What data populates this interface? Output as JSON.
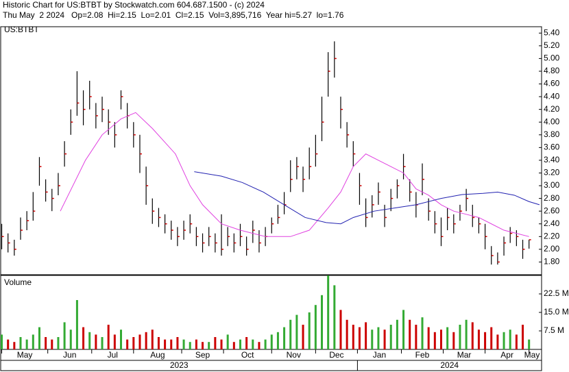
{
  "header": {
    "line1": "Historic Chart for US:BTBT by Stockwatch.com 604.687.1500 - (c) 2024",
    "line2": "Thu May  2 2024   Op=2.08  Hi=2.15  Lo=2.01  Cl=2.15  Vol=3,895,716  Year hi=5.27  lo=1.76"
  },
  "chart_data": [
    {
      "type": "ohlc",
      "title": "US:BTBT",
      "xlim": [
        -0.5,
        258
      ],
      "ylim": [
        1.6,
        5.5
      ],
      "yticks": [
        {
          "value": 1.8,
          "label": "1.80"
        },
        {
          "value": 2.0,
          "label": "2.00"
        },
        {
          "value": 2.2,
          "label": "2.20"
        },
        {
          "value": 2.4,
          "label": "2.40"
        },
        {
          "value": 2.6,
          "label": "2.60"
        },
        {
          "value": 2.8,
          "label": "2.80"
        },
        {
          "value": 3.0,
          "label": "3.00"
        },
        {
          "value": 3.2,
          "label": "3.20"
        },
        {
          "value": 3.4,
          "label": "3.40"
        },
        {
          "value": 3.6,
          "label": "3.60"
        },
        {
          "value": 3.8,
          "label": "3.80"
        },
        {
          "value": 4.0,
          "label": "4.00"
        },
        {
          "value": 4.2,
          "label": "4.20"
        },
        {
          "value": 4.4,
          "label": "4.40"
        },
        {
          "value": 4.6,
          "label": "4.60"
        },
        {
          "value": 4.8,
          "label": "4.80"
        },
        {
          "value": 5.0,
          "label": "5.00"
        },
        {
          "value": 5.2,
          "label": "5.20"
        },
        {
          "value": 5.4,
          "label": "5.40"
        }
      ],
      "bar_color": "#000000",
      "close_color": "#cc0000",
      "bars": {
        "x": [
          0,
          3,
          6,
          9,
          12,
          15,
          18,
          21,
          24,
          27,
          30,
          33,
          36,
          39,
          42,
          45,
          48,
          51,
          54,
          57,
          60,
          63,
          66,
          69,
          72,
          75,
          78,
          81,
          84,
          87,
          90,
          93,
          96,
          99,
          102,
          105,
          108,
          111,
          114,
          117,
          120,
          123,
          126,
          129,
          132,
          135,
          138,
          141,
          144,
          147,
          150,
          153,
          156,
          159,
          162,
          165,
          168,
          171,
          174,
          177,
          180,
          183,
          186,
          189,
          192,
          195,
          198,
          201,
          204,
          207,
          210,
          213,
          216,
          219,
          222,
          225,
          228,
          231,
          234,
          237,
          240,
          243,
          246,
          249,
          252
        ],
        "high": [
          2.4,
          2.25,
          2.15,
          2.5,
          2.6,
          2.9,
          3.45,
          3.1,
          2.95,
          3.2,
          3.7,
          4.2,
          4.8,
          4.5,
          4.65,
          4.3,
          4.4,
          4.2,
          4.0,
          4.5,
          4.3,
          4.0,
          3.8,
          3.3,
          2.8,
          2.65,
          2.55,
          2.45,
          2.35,
          2.45,
          2.55,
          2.35,
          2.25,
          2.35,
          2.25,
          2.55,
          2.35,
          2.25,
          2.4,
          2.2,
          2.45,
          2.3,
          2.35,
          2.5,
          2.7,
          2.9,
          3.4,
          3.45,
          3.3,
          3.6,
          3.8,
          4.4,
          5.1,
          5.27,
          4.4,
          4.0,
          3.7,
          3.2,
          2.8,
          2.85,
          3.05,
          2.7,
          2.95,
          3.1,
          3.5,
          3.1,
          2.9,
          3.35,
          2.8,
          2.6,
          2.5,
          2.65,
          2.55,
          2.7,
          2.95,
          2.7,
          2.5,
          2.4,
          2.05,
          1.95,
          2.2,
          2.35,
          2.3,
          2.15,
          2.15
        ],
        "low": [
          2.0,
          1.95,
          1.9,
          2.15,
          2.3,
          2.45,
          3.0,
          2.75,
          2.6,
          2.85,
          3.3,
          3.8,
          4.1,
          3.95,
          4.2,
          3.9,
          4.0,
          3.8,
          3.6,
          4.2,
          3.9,
          3.6,
          3.2,
          2.7,
          2.4,
          2.35,
          2.25,
          2.15,
          2.05,
          2.15,
          2.25,
          2.05,
          1.95,
          2.05,
          1.95,
          1.9,
          2.05,
          1.95,
          2.05,
          1.9,
          2.1,
          1.95,
          2.05,
          2.25,
          2.4,
          2.55,
          2.9,
          3.1,
          2.9,
          3.1,
          3.3,
          3.7,
          4.4,
          4.7,
          3.9,
          3.6,
          3.3,
          2.7,
          2.35,
          2.5,
          2.7,
          2.35,
          2.6,
          2.8,
          3.1,
          2.75,
          2.5,
          2.85,
          2.45,
          2.25,
          2.05,
          2.3,
          2.25,
          2.45,
          2.6,
          2.35,
          2.25,
          2.0,
          1.76,
          1.76,
          1.9,
          2.1,
          2.05,
          1.85,
          2.01
        ],
        "close": [
          2.2,
          2.1,
          2.0,
          2.3,
          2.45,
          2.6,
          3.3,
          2.9,
          2.8,
          3.0,
          3.5,
          4.0,
          4.3,
          4.2,
          4.4,
          4.1,
          4.2,
          4.0,
          3.8,
          4.4,
          4.1,
          3.8,
          3.5,
          3.0,
          2.6,
          2.5,
          2.4,
          2.3,
          2.2,
          2.3,
          2.4,
          2.2,
          2.1,
          2.2,
          2.1,
          2.0,
          2.2,
          2.1,
          2.2,
          2.0,
          2.3,
          2.1,
          2.2,
          2.4,
          2.5,
          2.7,
          3.1,
          3.3,
          3.1,
          3.3,
          3.5,
          4.0,
          4.8,
          5.0,
          4.2,
          3.8,
          3.5,
          3.0,
          2.5,
          2.7,
          2.9,
          2.5,
          2.8,
          3.0,
          3.3,
          2.9,
          2.7,
          3.1,
          2.6,
          2.4,
          2.2,
          2.5,
          2.4,
          2.6,
          2.8,
          2.5,
          2.4,
          2.2,
          1.9,
          1.8,
          2.1,
          2.25,
          2.2,
          2.0,
          2.15
        ]
      },
      "lines": [
        {
          "color": "#e040e0",
          "x": [
            28,
            40,
            48,
            57,
            64,
            72,
            83,
            90,
            96,
            105,
            114,
            126,
            138,
            147,
            156,
            162,
            168,
            174,
            180,
            186,
            192,
            198,
            204,
            210,
            216,
            222,
            228,
            234,
            240,
            246,
            252
          ],
          "values": [
            2.6,
            3.4,
            3.8,
            4.05,
            4.15,
            3.9,
            3.5,
            3.0,
            2.7,
            2.4,
            2.3,
            2.2,
            2.2,
            2.3,
            2.65,
            2.9,
            3.3,
            3.5,
            3.4,
            3.3,
            3.2,
            2.95,
            2.85,
            2.7,
            2.6,
            2.55,
            2.5,
            2.4,
            2.3,
            2.25,
            2.2
          ]
        },
        {
          "color": "#2020b0",
          "x": [
            92,
            105,
            115,
            125,
            135,
            145,
            155,
            162,
            168,
            178,
            188,
            198,
            210,
            220,
            230,
            237,
            245,
            252,
            257
          ],
          "values": [
            3.22,
            3.15,
            3.05,
            2.9,
            2.7,
            2.5,
            2.42,
            2.4,
            2.5,
            2.6,
            2.65,
            2.7,
            2.8,
            2.86,
            2.88,
            2.9,
            2.85,
            2.75,
            2.7
          ]
        }
      ]
    },
    {
      "type": "bar",
      "title": "Volume",
      "xlim": [
        -0.5,
        258
      ],
      "ylim": [
        0,
        30
      ],
      "yticks": [
        {
          "value": 7.5,
          "label": "7.5 M"
        },
        {
          "value": 15,
          "label": "15.0 M"
        },
        {
          "value": 22.5,
          "label": "22.5 M"
        }
      ],
      "up_color": "#33aa33",
      "down_color": "#cc0000",
      "x": [
        0,
        3,
        6,
        9,
        12,
        15,
        18,
        21,
        24,
        27,
        30,
        33,
        36,
        39,
        42,
        45,
        48,
        51,
        54,
        57,
        60,
        63,
        66,
        69,
        72,
        75,
        78,
        81,
        84,
        87,
        90,
        93,
        96,
        99,
        102,
        105,
        108,
        111,
        114,
        117,
        120,
        123,
        126,
        129,
        132,
        135,
        138,
        141,
        144,
        147,
        150,
        153,
        156,
        159,
        162,
        165,
        168,
        171,
        174,
        177,
        180,
        183,
        186,
        189,
        192,
        195,
        198,
        201,
        204,
        207,
        210,
        213,
        216,
        219,
        222,
        225,
        228,
        231,
        234,
        237,
        240,
        243,
        246,
        249,
        252
      ],
      "values": [
        6,
        4,
        3,
        5,
        4,
        6,
        9,
        5,
        4,
        5,
        11,
        8,
        20,
        9,
        7,
        6,
        5,
        10,
        6,
        8,
        4,
        5,
        6,
        7,
        8,
        5,
        4,
        4,
        5,
        4,
        3,
        4,
        3,
        3,
        5,
        4,
        6,
        3,
        4,
        5,
        4,
        3,
        4,
        6,
        7,
        9,
        12,
        14,
        10,
        15,
        18,
        22,
        30,
        26,
        16,
        12,
        10,
        9,
        11,
        8,
        9,
        8,
        10,
        12,
        16,
        12,
        10,
        13,
        9,
        7,
        8,
        9,
        7,
        10,
        12,
        11,
        8,
        7,
        9,
        6,
        7,
        8,
        6,
        10,
        4
      ],
      "xticks": [
        {
          "value": 0,
          "label": "May"
        },
        {
          "value": 22,
          "label": "Jun"
        },
        {
          "value": 43,
          "label": "Jul"
        },
        {
          "value": 63,
          "label": "Aug"
        },
        {
          "value": 86,
          "label": "Sep"
        },
        {
          "value": 106,
          "label": "Oct"
        },
        {
          "value": 129,
          "label": "Nov"
        },
        {
          "value": 150,
          "label": "Dec"
        },
        {
          "value": 170,
          "label": "Jan"
        },
        {
          "value": 191,
          "label": "Feb"
        },
        {
          "value": 211,
          "label": "Mar"
        },
        {
          "value": 231,
          "label": "Apr"
        },
        {
          "value": 252,
          "label": "May"
        }
      ],
      "year_ticks": [
        {
          "value": -0.5,
          "label": "2023"
        },
        {
          "value": 170,
          "label": "2024"
        }
      ]
    }
  ]
}
